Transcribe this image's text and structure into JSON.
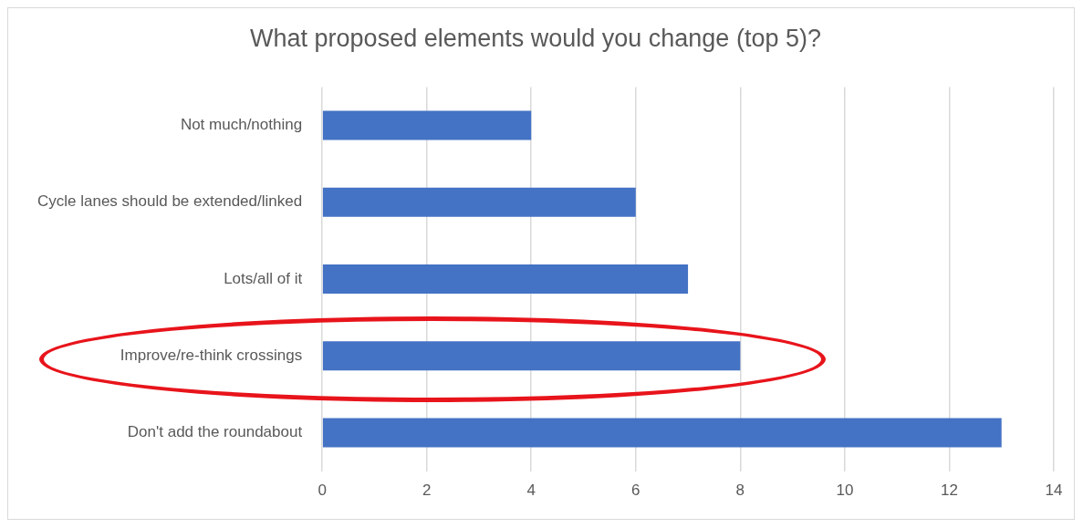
{
  "chart_data": {
    "type": "bar",
    "orientation": "horizontal",
    "title": "What proposed elements would you change (top 5)?",
    "categories": [
      "Not much/nothing",
      "Cycle lanes should be extended/linked",
      "Lots/all of it",
      "Improve/re-think crossings",
      "Don't add the roundabout"
    ],
    "values": [
      4,
      6,
      7,
      8,
      13
    ],
    "color": "#4472c4",
    "xlim": [
      0,
      14
    ],
    "xticks": [
      0,
      2,
      4,
      6,
      8,
      10,
      12,
      14
    ],
    "grid": "x"
  }
}
